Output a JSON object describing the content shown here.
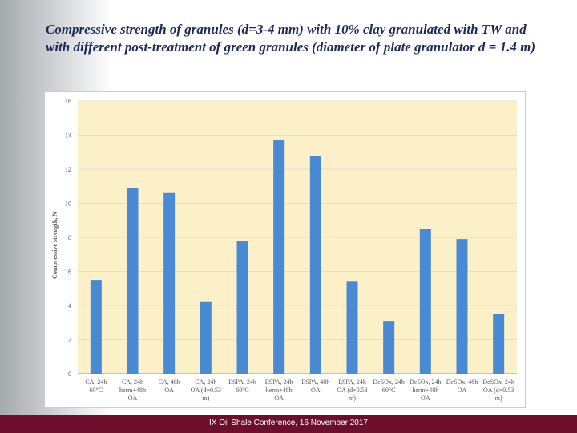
{
  "chart_data": {
    "type": "bar",
    "title": "Compressive strength of granules (d=3-4 mm) with 10% clay granulated with TW and with different post-treatment of green granules (diameter of plate granulator d = 1.4 m)",
    "ylabel": "Compressive strength, N",
    "categories": [
      [
        "CA, 24h",
        "60°C"
      ],
      [
        "CA, 24h",
        "herm+48h",
        "OA"
      ],
      [
        "CA, 48h",
        "OA"
      ],
      [
        "CA, 24h",
        "OA (d=0.53",
        "m)"
      ],
      [
        "ESPA, 24h",
        "60°C"
      ],
      [
        "ESPA, 24h",
        "herm+48h",
        "OA"
      ],
      [
        "ESPA, 48h",
        "OA"
      ],
      [
        "ESPA, 24h",
        "OA (d=0.53",
        "m)"
      ],
      [
        "DeSOx, 24h",
        "60°C"
      ],
      [
        "DeSOx, 24h",
        "herm+48h",
        "OA"
      ],
      [
        "DeSOx, 48h",
        "OA"
      ],
      [
        "DeSOx, 24h",
        "OA (d=0.53",
        "m)"
      ]
    ],
    "values": [
      5.5,
      10.9,
      10.6,
      4.2,
      7.8,
      13.7,
      12.8,
      5.4,
      3.1,
      8.5,
      7.9,
      3.5
    ],
    "color": "#4a8ad4",
    "ylim": [
      0,
      16
    ],
    "yticks": [
      0,
      2,
      4,
      6,
      8,
      10,
      12,
      14,
      16
    ],
    "grid": true
  },
  "footer": "IX Oil Shale Conference, 16 November 2017"
}
